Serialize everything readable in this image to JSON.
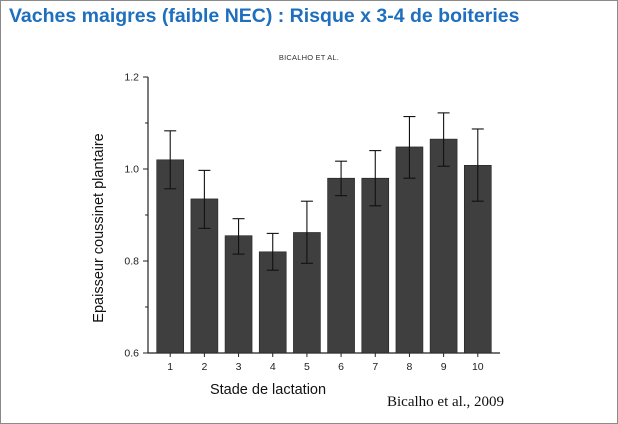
{
  "slide": {
    "title": "Vaches maigres (faible NEC) : Risque x 3-4 de boiteries",
    "citation": "Bicalho et al., 2009"
  },
  "chart_data": {
    "type": "bar",
    "header": "BICALHO ET AL.",
    "xlabel": "Stade de lactation",
    "ylabel": "Epaisseur coussinet plantaire",
    "categories": [
      "1",
      "2",
      "3",
      "4",
      "5",
      "6",
      "7",
      "8",
      "9",
      "10"
    ],
    "values": [
      1.02,
      0.935,
      0.855,
      0.82,
      0.862,
      0.98,
      0.98,
      1.048,
      1.065,
      1.008
    ],
    "error_upper": [
      1.083,
      0.997,
      0.892,
      0.86,
      0.93,
      1.017,
      1.04,
      1.114,
      1.122,
      1.087
    ],
    "error_lower": [
      0.957,
      0.871,
      0.815,
      0.78,
      0.795,
      0.942,
      0.92,
      0.98,
      1.006,
      0.93
    ],
    "ylim": [
      0.6,
      1.2
    ],
    "yticks": [
      "0.6",
      "0.8",
      "1.0",
      "1.2"
    ],
    "bar_color": "#3f3f3f",
    "grid": false,
    "legend": "none"
  }
}
